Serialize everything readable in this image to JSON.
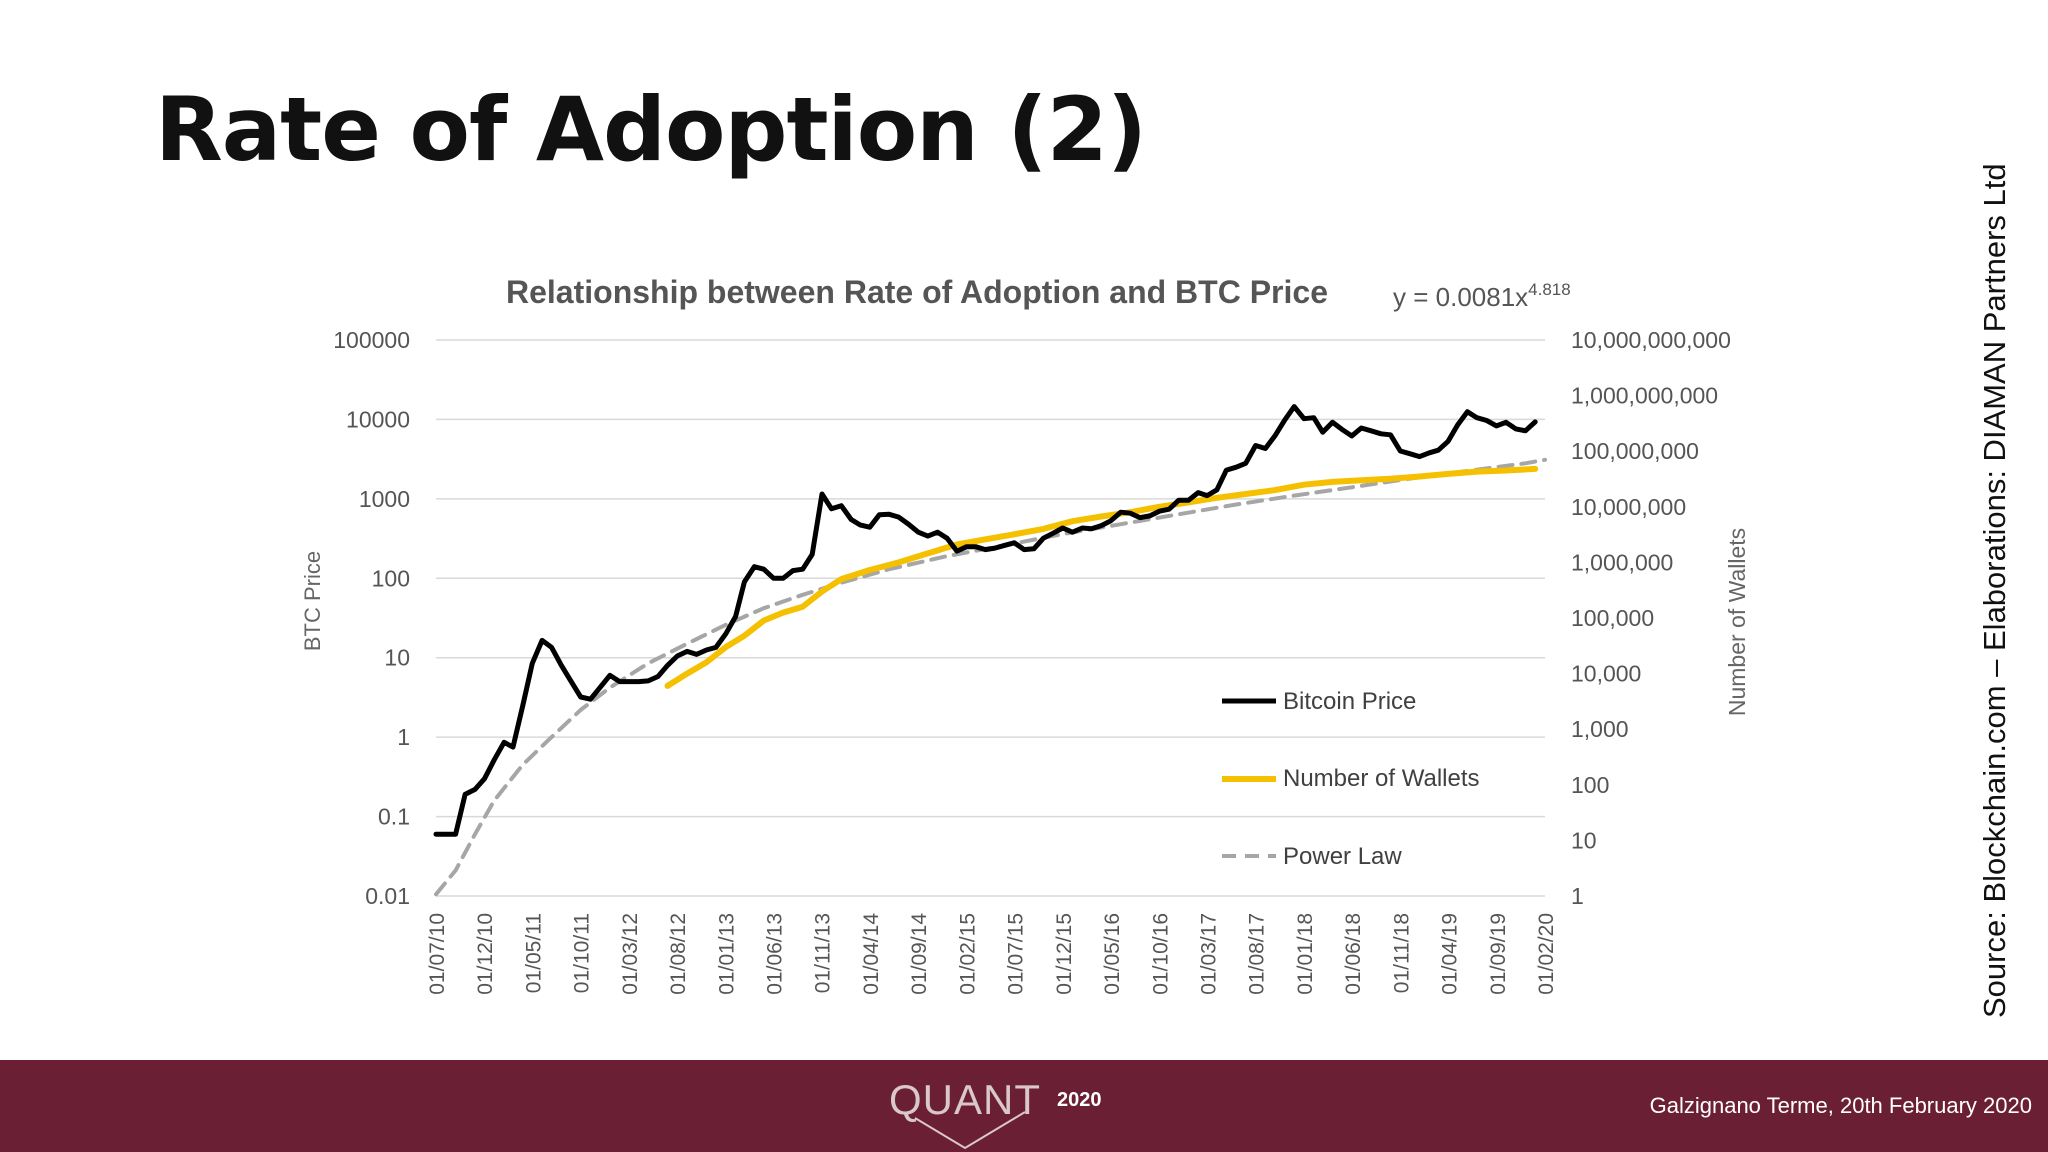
{
  "slide": {
    "title": "Rate of Adoption (2)",
    "source_note": "Source: Blockchain.com – Elaborations: DIAMAN Partners Ltd",
    "footer_logo_text": "QUANT",
    "footer_logo_year": "2020",
    "footer_date": "Galzignano Terme, 20th February 2020",
    "colors": {
      "footer": "#6b1f35",
      "price": "#000000",
      "wallets": "#f5c000",
      "power_law": "#a6a6a6"
    }
  },
  "chart_data": {
    "type": "line",
    "title": "Relationship between Rate of Adoption and BTC Price",
    "equation": {
      "base": "y = 0.0081x",
      "exponent": "4.818"
    },
    "ylabel_left": "BTC Price",
    "ylabel_right": "Number of Wallets",
    "y_scale": "log",
    "ylim_left": [
      0.01,
      100000
    ],
    "ylim_right": [
      1,
      10000000000
    ],
    "left_ticks": [
      "100000",
      "10000",
      "1000",
      "100",
      "10",
      "1",
      "0.1",
      "0.01"
    ],
    "right_ticks": [
      "10,000,000,000",
      "1,000,000,000",
      "100,000,000",
      "10,000,000",
      "1,000,000",
      "100,000",
      "10,000",
      "1,000",
      "100",
      "10",
      "1"
    ],
    "x_ticks": [
      "01/07/10",
      "01/12/10",
      "01/05/11",
      "01/10/11",
      "01/03/12",
      "01/08/12",
      "01/01/13",
      "01/06/13",
      "01/11/13",
      "01/04/14",
      "01/09/14",
      "01/02/15",
      "01/07/15",
      "01/12/15",
      "01/05/16",
      "01/10/16",
      "01/03/17",
      "01/08/17",
      "01/01/18",
      "01/06/18",
      "01/11/18",
      "01/04/19",
      "01/09/19",
      "01/02/20"
    ],
    "grid": true,
    "legend_position": "bottom-right inside plot",
    "series": [
      {
        "name": "Bitcoin Price",
        "axis": "left",
        "points": [
          [
            "2010-07-01",
            0.06
          ],
          [
            "2010-09-01",
            0.06
          ],
          [
            "2010-10-01",
            0.19
          ],
          [
            "2010-11-01",
            0.22
          ],
          [
            "2010-12-01",
            0.3
          ],
          [
            "2011-01-01",
            0.52
          ],
          [
            "2011-02-01",
            0.86
          ],
          [
            "2011-03-01",
            0.75
          ],
          [
            "2011-04-01",
            2.5
          ],
          [
            "2011-05-01",
            8.5
          ],
          [
            "2011-06-01",
            16.5
          ],
          [
            "2011-07-01",
            13.5
          ],
          [
            "2011-08-01",
            8.0
          ],
          [
            "2011-09-01",
            5.0
          ],
          [
            "2011-10-01",
            3.2
          ],
          [
            "2011-11-01",
            3.0
          ],
          [
            "2011-12-01",
            4.2
          ],
          [
            "2012-01-01",
            6.0
          ],
          [
            "2012-02-01",
            5.0
          ],
          [
            "2012-04-01",
            5.0
          ],
          [
            "2012-05-01",
            5.1
          ],
          [
            "2012-06-01",
            5.8
          ],
          [
            "2012-07-01",
            8.0
          ],
          [
            "2012-08-01",
            10.5
          ],
          [
            "2012-09-01",
            12.0
          ],
          [
            "2012-10-01",
            11.0
          ],
          [
            "2012-11-01",
            12.5
          ],
          [
            "2012-12-01",
            13.5
          ],
          [
            "2013-01-01",
            20
          ],
          [
            "2013-02-01",
            33
          ],
          [
            "2013-03-01",
            90
          ],
          [
            "2013-04-01",
            140
          ],
          [
            "2013-05-01",
            130
          ],
          [
            "2013-06-01",
            100
          ],
          [
            "2013-07-01",
            100
          ],
          [
            "2013-08-01",
            125
          ],
          [
            "2013-09-01",
            130
          ],
          [
            "2013-10-01",
            200
          ],
          [
            "2013-11-01",
            1150
          ],
          [
            "2013-12-01",
            750
          ],
          [
            "2014-01-01",
            820
          ],
          [
            "2014-02-01",
            550
          ],
          [
            "2014-03-01",
            470
          ],
          [
            "2014-04-01",
            440
          ],
          [
            "2014-05-01",
            630
          ],
          [
            "2014-06-01",
            640
          ],
          [
            "2014-07-01",
            590
          ],
          [
            "2014-08-01",
            480
          ],
          [
            "2014-09-01",
            380
          ],
          [
            "2014-10-01",
            340
          ],
          [
            "2014-11-01",
            380
          ],
          [
            "2014-12-01",
            320
          ],
          [
            "2015-01-01",
            220
          ],
          [
            "2015-02-01",
            250
          ],
          [
            "2015-03-01",
            250
          ],
          [
            "2015-04-01",
            230
          ],
          [
            "2015-05-01",
            240
          ],
          [
            "2015-06-01",
            260
          ],
          [
            "2015-07-01",
            280
          ],
          [
            "2015-08-01",
            230
          ],
          [
            "2015-09-01",
            235
          ],
          [
            "2015-10-01",
            320
          ],
          [
            "2015-11-01",
            370
          ],
          [
            "2015-12-01",
            430
          ],
          [
            "2016-01-01",
            380
          ],
          [
            "2016-02-01",
            430
          ],
          [
            "2016-03-01",
            420
          ],
          [
            "2016-04-01",
            460
          ],
          [
            "2016-05-01",
            530
          ],
          [
            "2016-06-01",
            680
          ],
          [
            "2016-07-01",
            660
          ],
          [
            "2016-08-01",
            580
          ],
          [
            "2016-09-01",
            610
          ],
          [
            "2016-10-01",
            700
          ],
          [
            "2016-11-01",
            740
          ],
          [
            "2016-12-01",
            960
          ],
          [
            "2017-01-01",
            960
          ],
          [
            "2017-02-01",
            1200
          ],
          [
            "2017-03-01",
            1100
          ],
          [
            "2017-04-01",
            1300
          ],
          [
            "2017-05-01",
            2300
          ],
          [
            "2017-06-01",
            2500
          ],
          [
            "2017-07-01",
            2800
          ],
          [
            "2017-08-01",
            4700
          ],
          [
            "2017-09-01",
            4300
          ],
          [
            "2017-10-01",
            6200
          ],
          [
            "2017-11-01",
            9800
          ],
          [
            "2017-12-01",
            14500
          ],
          [
            "2018-01-01",
            10200
          ],
          [
            "2018-02-01",
            10500
          ],
          [
            "2018-03-01",
            6900
          ],
          [
            "2018-04-01",
            9200
          ],
          [
            "2018-05-01",
            7500
          ],
          [
            "2018-06-01",
            6200
          ],
          [
            "2018-07-01",
            7800
          ],
          [
            "2018-08-01",
            7200
          ],
          [
            "2018-09-01",
            6600
          ],
          [
            "2018-10-01",
            6400
          ],
          [
            "2018-11-01",
            4000
          ],
          [
            "2018-12-01",
            3700
          ],
          [
            "2019-01-01",
            3400
          ],
          [
            "2019-02-01",
            3800
          ],
          [
            "2019-03-01",
            4100
          ],
          [
            "2019-04-01",
            5300
          ],
          [
            "2019-05-01",
            8500
          ],
          [
            "2019-06-01",
            12500
          ],
          [
            "2019-07-01",
            10500
          ],
          [
            "2019-08-01",
            9700
          ],
          [
            "2019-09-01",
            8300
          ],
          [
            "2019-10-01",
            9200
          ],
          [
            "2019-11-01",
            7600
          ],
          [
            "2019-12-01",
            7200
          ],
          [
            "2020-01-01",
            9300
          ]
        ]
      },
      {
        "name": "Number of Wallets",
        "axis": "right",
        "points": [
          [
            "2012-07-01",
            6000
          ],
          [
            "2012-09-01",
            10000
          ],
          [
            "2012-11-01",
            16000
          ],
          [
            "2013-01-01",
            30000
          ],
          [
            "2013-03-01",
            48000
          ],
          [
            "2013-05-01",
            90000
          ],
          [
            "2013-07-01",
            125000
          ],
          [
            "2013-09-01",
            160000
          ],
          [
            "2013-11-01",
            300000
          ],
          [
            "2014-01-01",
            500000
          ],
          [
            "2014-04-01",
            730000
          ],
          [
            "2014-07-01",
            1000000
          ],
          [
            "2014-10-01",
            1450000
          ],
          [
            "2015-01-01",
            2100000
          ],
          [
            "2015-04-01",
            2600000
          ],
          [
            "2015-07-01",
            3200000
          ],
          [
            "2015-10-01",
            4000000
          ],
          [
            "2016-01-01",
            5500000
          ],
          [
            "2016-04-01",
            6700000
          ],
          [
            "2016-07-01",
            8000000
          ],
          [
            "2016-10-01",
            10000000
          ],
          [
            "2017-01-01",
            12000000
          ],
          [
            "2017-04-01",
            14500000
          ],
          [
            "2017-07-01",
            17000000
          ],
          [
            "2017-10-01",
            20000000
          ],
          [
            "2018-01-01",
            25000000
          ],
          [
            "2018-04-01",
            28000000
          ],
          [
            "2018-07-01",
            30000000
          ],
          [
            "2018-10-01",
            32000000
          ],
          [
            "2019-01-01",
            35000000
          ],
          [
            "2019-04-01",
            39000000
          ],
          [
            "2019-07-01",
            43000000
          ],
          [
            "2019-10-01",
            45000000
          ],
          [
            "2020-01-01",
            48000000
          ]
        ]
      },
      {
        "name": "Power Law",
        "axis": "left",
        "style": "dashed",
        "points": [
          [
            "2010-07-01",
            0.0105
          ],
          [
            "2010-09-01",
            0.021
          ],
          [
            "2010-11-01",
            0.06
          ],
          [
            "2011-01-01",
            0.16
          ],
          [
            "2011-04-01",
            0.45
          ],
          [
            "2011-07-01",
            1.0
          ],
          [
            "2011-10-01",
            2.2
          ],
          [
            "2012-01-01",
            4.2
          ],
          [
            "2012-05-01",
            8.5
          ],
          [
            "2012-09-01",
            15
          ],
          [
            "2013-01-01",
            26
          ],
          [
            "2013-05-01",
            42
          ],
          [
            "2013-09-01",
            62
          ],
          [
            "2014-01-01",
            88
          ],
          [
            "2014-06-01",
            130
          ],
          [
            "2014-12-01",
            190
          ],
          [
            "2015-06-01",
            260
          ],
          [
            "2015-12-01",
            360
          ],
          [
            "2016-06-01",
            480
          ],
          [
            "2016-12-01",
            640
          ],
          [
            "2017-06-01",
            850
          ],
          [
            "2017-12-01",
            1100
          ],
          [
            "2018-06-01",
            1400
          ],
          [
            "2018-12-01",
            1800
          ],
          [
            "2019-06-01",
            2250
          ],
          [
            "2019-12-01",
            2800
          ],
          [
            "2020-02-01",
            3100
          ]
        ]
      }
    ]
  }
}
